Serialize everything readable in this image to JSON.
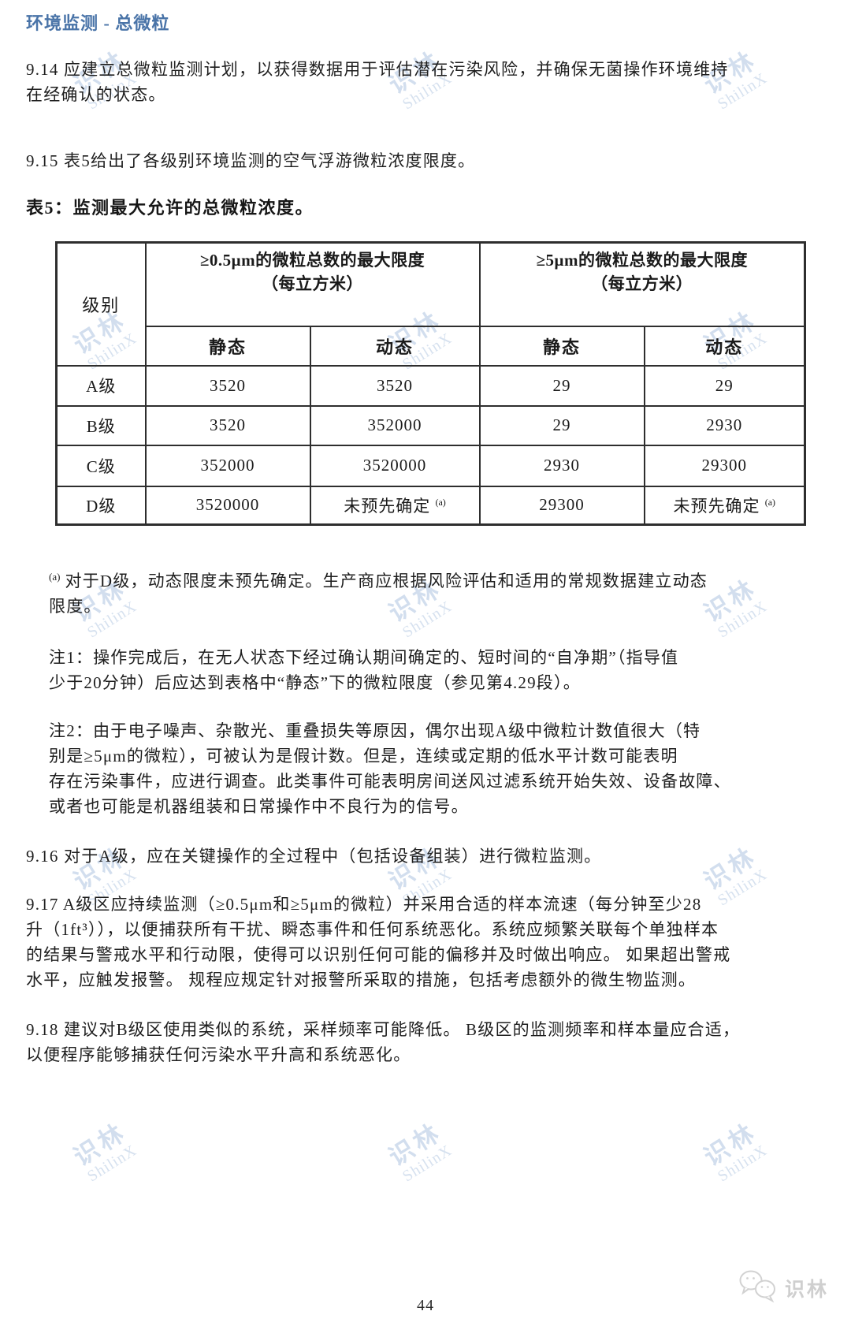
{
  "page": {
    "header": "环境监测 - 总微粒",
    "page_number": "44"
  },
  "paragraphs": {
    "p914": "9.14 应建立总微粒监测计划，以获得数据用于评估潜在污染风险，并确保无菌操作环境维持\n在经确认的状态。",
    "p915": "9.15 表5给出了各级别环境监测的空气浮游微粒浓度限度。",
    "p916": "9.16 对于A级，应在关键操作的全过程中（包括设备组装）进行微粒监测。",
    "p917": "9.17 A级区应持续监测（≥0.5μm和≥5μm的微粒）并采用合适的样本流速（每分钟至少28\n升（1ft³）），以便捕获所有干扰、瞬态事件和任何系统恶化。系统应频繁关联每个单独样本\n的结果与警戒水平和行动限，使得可以识别任何可能的偏移并及时做出响应。 如果超出警戒\n水平，应触发报警。 规程应规定针对报警所采取的措施，包括考虑额外的微生物监测。",
    "p918": "9.18 建议对B级区使用类似的系统，采样频率可能降低。 B级区的监测频率和样本量应合适，\n以便程序能够捕获任何污染水平升高和系统恶化。"
  },
  "table5": {
    "title": "表5：监测最大允许的总微粒浓度。",
    "col_class": "级别",
    "group1": "≥0.5μm的微粒总数的最大限度\n（每立方米）",
    "group2": "≥5μm的微粒总数的最大限度\n（每立方米）",
    "sub_labels": [
      "静态",
      "动态",
      "静态",
      "动态"
    ],
    "footnote_marker": "(a)",
    "rows": [
      {
        "label": "A级",
        "cells": [
          "3520",
          "3520",
          "29",
          "29"
        ]
      },
      {
        "label": "B级",
        "cells": [
          "3520",
          "352000",
          "29",
          "2930"
        ]
      },
      {
        "label": "C级",
        "cells": [
          "352000",
          "3520000",
          "2930",
          "29300"
        ]
      },
      {
        "label": "D级",
        "cells": [
          "3520000",
          "未预先确定",
          "29300",
          "未预先确定"
        ]
      }
    ]
  },
  "footnote": {
    "marker": "(a)",
    "text": "对于D级，动态限度未预先确定。生产商应根据风险评估和适用的常规数据建立动态\n限度。"
  },
  "notes": {
    "note1": "注1：操作完成后，在无人状态下经过确认期间确定的、短时间的“自净期”（指导值\n少于20分钟）后应达到表格中“静态”下的微粒限度（参见第4.29段）。",
    "note2": "注2：由于电子噪声、杂散光、重叠损失等原因，偶尔出现A级中微粒计数值很大（特\n别是≥5μm的微粒），可被认为是假计数。但是，连续或定期的低水平计数可能表明\n存在污染事件，应进行调查。此类事件可能表明房间送风过滤系统开始失效、设备故障、\n或者也可能是机器组装和日常操作中不良行为的信号。"
  },
  "watermark": {
    "line1": "识林",
    "line2": "ShilinX"
  },
  "logo": {
    "text": "识林"
  },
  "colors": {
    "header_blue": "#4a74a8",
    "watermark_blue": "#94b0d6",
    "logo_gray": "#cfcfcf"
  }
}
